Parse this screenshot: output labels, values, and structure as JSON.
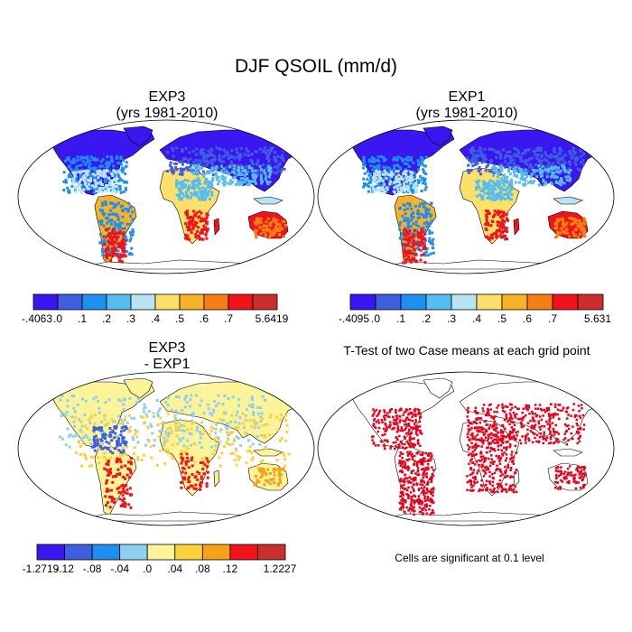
{
  "figure": {
    "title": "DJF QSOIL (mm/d)"
  },
  "panels": [
    {
      "id": "exp3",
      "title_line1": "EXP3",
      "title_line2": "(yrs 1981-2010)",
      "type": "field"
    },
    {
      "id": "exp1",
      "title_line1": "EXP1",
      "title_line2": "(yrs 1981-2010)",
      "type": "field"
    },
    {
      "id": "diff",
      "title_line1": "EXP3",
      "title_line2": "- EXP1",
      "type": "difference"
    },
    {
      "id": "ttest",
      "title_line1": "T-Test of two Case means at each grid point",
      "title_line2": "",
      "type": "significance"
    }
  ],
  "colorbars": [
    {
      "id": "cb-exp3",
      "colors": [
        "#3a16f0",
        "#3d5fe0",
        "#1e8ef0",
        "#56bdf0",
        "#b8e3f2",
        "#fde06a",
        "#f8b227",
        "#f57f12",
        "#f0141a",
        "#cc2e30"
      ],
      "labels": [
        "-.4063",
        ".0",
        ".1",
        ".2",
        ".3",
        ".4",
        ".5",
        ".6",
        ".7",
        "5.6419"
      ]
    },
    {
      "id": "cb-exp1",
      "colors": [
        "#3a16f0",
        "#3d5fe0",
        "#1e8ef0",
        "#56bdf0",
        "#b8e3f2",
        "#fde06a",
        "#f8b227",
        "#f57f12",
        "#f0141a",
        "#cc2e30"
      ],
      "labels": [
        "-.4095",
        ".0",
        ".1",
        ".2",
        ".3",
        ".4",
        ".5",
        ".6",
        ".7",
        "5.631"
      ]
    },
    {
      "id": "cb-diff",
      "colors": [
        "#3a16f0",
        "#3d5fe0",
        "#1e8ef0",
        "#8fd0f2",
        "#fdf49a",
        "#fdd13a",
        "#f5a11a",
        "#f0141a",
        "#cc2e30"
      ],
      "labels": [
        "-1.2719",
        "-.12",
        "-.08",
        "-.04",
        ".0",
        ".04",
        ".08",
        ".12",
        "1.2227"
      ]
    }
  ],
  "ttest_note": "Cells are significant at 0.1 level",
  "colors": {
    "significant": "#e8001a",
    "land_outline": "#000000"
  }
}
